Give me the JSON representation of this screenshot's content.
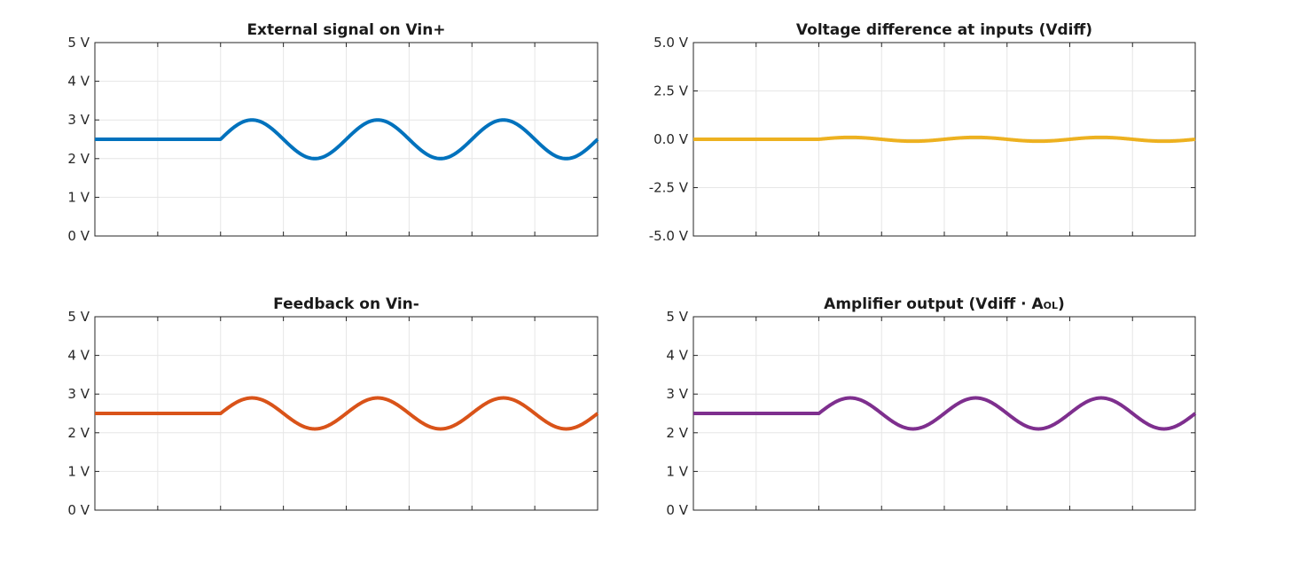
{
  "chart_data": [
    {
      "type": "line",
      "title": "External signal on Vin+",
      "color": "#0072BD",
      "ylim": [
        0,
        5
      ],
      "y_ticks": [
        "0 V",
        "1 V",
        "2 V",
        "3 V",
        "4 V",
        "5 V"
      ],
      "xlim": [
        0,
        8
      ],
      "x_tick_labels": [],
      "grid": true,
      "signal": {
        "baseline": 2.5,
        "amplitude": 0.5,
        "start": 2.0,
        "period": 2.0,
        "end": 8.0
      }
    },
    {
      "type": "line",
      "title": "Voltage difference at inputs (Vdiff)",
      "color": "#EDB120",
      "ylim": [
        -5,
        5
      ],
      "y_ticks": [
        "-5.0 V",
        "-2.5 V",
        "0.0 V",
        "2.5 V",
        "5.0 V"
      ],
      "xlim": [
        0,
        8
      ],
      "x_tick_labels": [],
      "grid": true,
      "signal": {
        "baseline": 0.0,
        "amplitude": 0.1,
        "start": 2.0,
        "period": 2.0,
        "end": 8.0
      }
    },
    {
      "type": "line",
      "title": "Feedback on Vin-",
      "color": "#D95319",
      "ylim": [
        0,
        5
      ],
      "y_ticks": [
        "0 V",
        "1 V",
        "2 V",
        "3 V",
        "4 V",
        "5 V"
      ],
      "xlim": [
        0,
        8
      ],
      "x_tick_labels": [],
      "grid": true,
      "signal": {
        "baseline": 2.5,
        "amplitude": 0.4,
        "start": 2.0,
        "period": 2.0,
        "end": 8.0
      }
    },
    {
      "type": "line",
      "title": "Amplifier output (Vdiff · A",
      "title_subscript": "OL",
      "title_suffix": ")",
      "color": "#7E2F8E",
      "ylim": [
        0,
        5
      ],
      "y_ticks": [
        "0 V",
        "1 V",
        "2 V",
        "3 V",
        "4 V",
        "5 V"
      ],
      "xlim": [
        0,
        8
      ],
      "x_tick_labels": [],
      "grid": true,
      "signal": {
        "baseline": 2.5,
        "amplitude": 0.4,
        "start": 2.0,
        "period": 2.0,
        "end": 8.0
      }
    }
  ]
}
